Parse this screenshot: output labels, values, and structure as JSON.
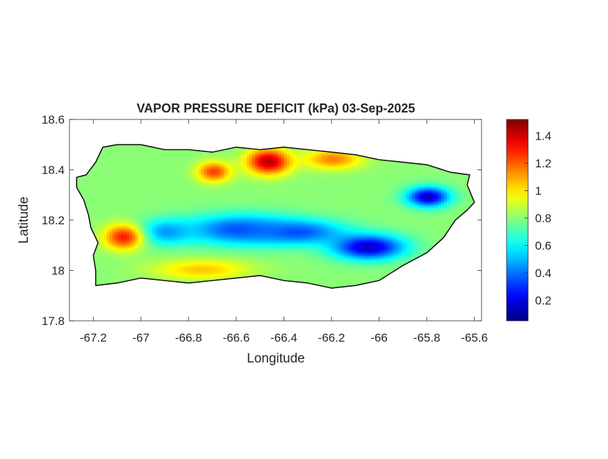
{
  "chart_data": {
    "type": "heatmap",
    "title": "VAPOR PRESSURE DEFICIT (kPa) 03-Sep-2025",
    "xlabel": "Longitude",
    "ylabel": "Latitude",
    "xlim": [
      -67.3,
      -65.57
    ],
    "ylim": [
      17.8,
      18.6
    ],
    "xticks": [
      -67.2,
      -67,
      -66.8,
      -66.6,
      -66.4,
      -66.2,
      -66,
      -65.8,
      -65.6
    ],
    "xtick_labels": [
      "-67.2",
      "-67",
      "-66.8",
      "-66.6",
      "-66.4",
      "-66.2",
      "-66",
      "-65.8",
      "-65.6"
    ],
    "yticks": [
      17.8,
      18,
      18.2,
      18.4,
      18.6
    ],
    "ytick_labels": [
      "17.8",
      "18",
      "18.2",
      "18.4",
      "18.6"
    ],
    "colorbar": {
      "colormap": "jet",
      "range": [
        0.05,
        1.52
      ],
      "ticks": [
        0.2,
        0.4,
        0.6,
        0.8,
        1,
        1.2,
        1.4
      ],
      "tick_labels": [
        "0.2",
        "0.4",
        "0.6",
        "0.8",
        "1",
        "1.2",
        "1.4"
      ]
    },
    "grid": false,
    "island_outline_lonlat": [
      [
        -67.27,
        18.37
      ],
      [
        -67.23,
        18.38
      ],
      [
        -67.19,
        18.43
      ],
      [
        -67.16,
        18.49
      ],
      [
        -67.1,
        18.5
      ],
      [
        -67.0,
        18.5
      ],
      [
        -66.9,
        18.48
      ],
      [
        -66.8,
        18.48
      ],
      [
        -66.7,
        18.47
      ],
      [
        -66.6,
        18.49
      ],
      [
        -66.5,
        18.48
      ],
      [
        -66.4,
        18.49
      ],
      [
        -66.3,
        18.48
      ],
      [
        -66.2,
        18.47
      ],
      [
        -66.1,
        18.46
      ],
      [
        -66.0,
        18.44
      ],
      [
        -65.9,
        18.43
      ],
      [
        -65.8,
        18.42
      ],
      [
        -65.7,
        18.39
      ],
      [
        -65.62,
        18.38
      ],
      [
        -65.63,
        18.34
      ],
      [
        -65.6,
        18.27
      ],
      [
        -65.63,
        18.24
      ],
      [
        -65.68,
        18.2
      ],
      [
        -65.73,
        18.13
      ],
      [
        -65.8,
        18.07
      ],
      [
        -65.9,
        18.02
      ],
      [
        -66.0,
        17.96
      ],
      [
        -66.1,
        17.94
      ],
      [
        -66.2,
        17.93
      ],
      [
        -66.3,
        17.95
      ],
      [
        -66.4,
        17.96
      ],
      [
        -66.5,
        17.98
      ],
      [
        -66.6,
        17.97
      ],
      [
        -66.7,
        17.96
      ],
      [
        -66.8,
        17.95
      ],
      [
        -66.9,
        17.96
      ],
      [
        -67.0,
        17.97
      ],
      [
        -67.1,
        17.95
      ],
      [
        -67.19,
        17.94
      ],
      [
        -67.19,
        18.0
      ],
      [
        -67.2,
        18.06
      ],
      [
        -67.18,
        18.11
      ],
      [
        -67.21,
        18.17
      ],
      [
        -67.22,
        18.22
      ],
      [
        -67.24,
        18.28
      ],
      [
        -67.27,
        18.33
      ]
    ],
    "field_components": [
      {
        "lon": -66.6,
        "lat": 18.16,
        "width_lon": 0.22,
        "width_lat": 0.06,
        "value": 0.35
      },
      {
        "lon": -66.35,
        "lat": 18.15,
        "width_lon": 0.2,
        "width_lat": 0.05,
        "value": 0.35
      },
      {
        "lon": -66.05,
        "lat": 18.09,
        "width_lon": 0.15,
        "width_lat": 0.05,
        "value": 0.15
      },
      {
        "lon": -65.8,
        "lat": 18.29,
        "width_lon": 0.09,
        "width_lat": 0.04,
        "value": 0.15
      },
      {
        "lon": -66.9,
        "lat": 18.15,
        "width_lon": 0.12,
        "width_lat": 0.05,
        "value": 0.45
      },
      {
        "lon": -66.47,
        "lat": 18.43,
        "width_lon": 0.09,
        "width_lat": 0.05,
        "value": 1.45
      },
      {
        "lon": -66.7,
        "lat": 18.39,
        "width_lon": 0.07,
        "width_lat": 0.04,
        "value": 1.25
      },
      {
        "lon": -67.08,
        "lat": 18.13,
        "width_lon": 0.08,
        "width_lat": 0.05,
        "value": 1.3
      },
      {
        "lon": -66.2,
        "lat": 18.44,
        "width_lon": 0.12,
        "width_lat": 0.04,
        "value": 1.15
      },
      {
        "lon": -66.75,
        "lat": 18.0,
        "width_lon": 0.2,
        "width_lat": 0.04,
        "value": 1.05
      }
    ],
    "field_background": 0.8
  }
}
